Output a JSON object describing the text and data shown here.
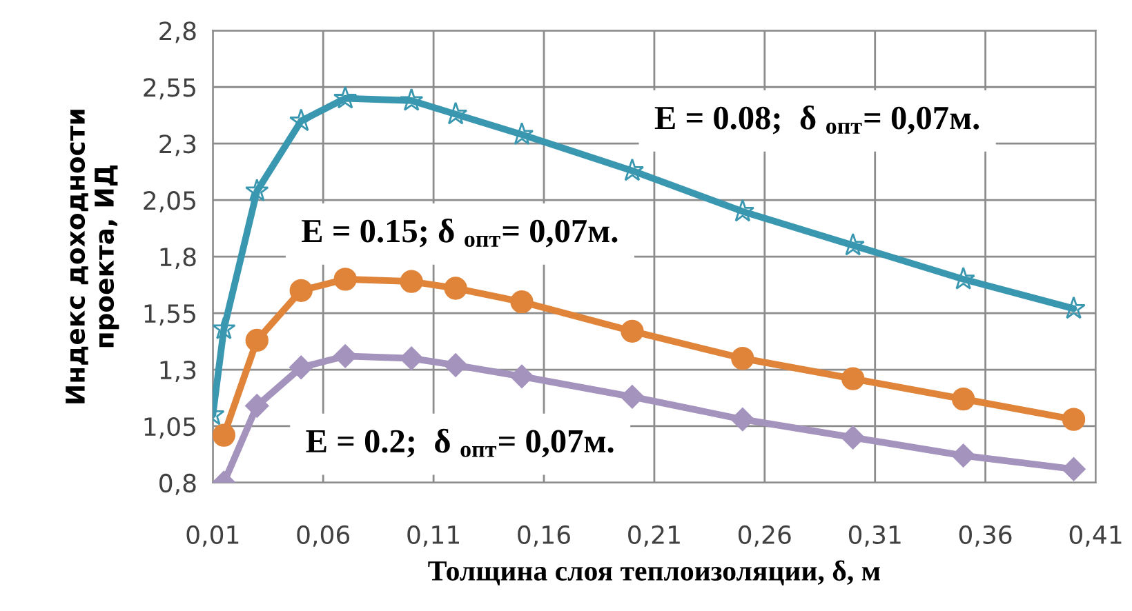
{
  "chart_data": {
    "type": "line",
    "xlabel": "Толщина слоя теплоизоляции, δ, м",
    "ylabel": "Индекс доходности проекта, ИД",
    "xlim": [
      0.01,
      0.41
    ],
    "ylim": [
      0.8,
      2.8
    ],
    "xticks": [
      {
        "value": 0.01,
        "label": "0,01"
      },
      {
        "value": 0.06,
        "label": "0,06"
      },
      {
        "value": 0.11,
        "label": "0,11"
      },
      {
        "value": 0.16,
        "label": "0,16"
      },
      {
        "value": 0.21,
        "label": "0,21"
      },
      {
        "value": 0.26,
        "label": "0,26"
      },
      {
        "value": 0.31,
        "label": "0,31"
      },
      {
        "value": 0.36,
        "label": "0,36"
      },
      {
        "value": 0.41,
        "label": "0,41"
      }
    ],
    "yticks": [
      {
        "value": 0.8,
        "label": "0,8"
      },
      {
        "value": 1.05,
        "label": "1,05"
      },
      {
        "value": 1.3,
        "label": "1,3"
      },
      {
        "value": 1.55,
        "label": "1,55"
      },
      {
        "value": 1.8,
        "label": "1,8"
      },
      {
        "value": 2.05,
        "label": "2,05"
      },
      {
        "value": 2.3,
        "label": "2,3"
      },
      {
        "value": 2.55,
        "label": "2,55"
      },
      {
        "value": 2.8,
        "label": "2,8"
      }
    ],
    "grid": true,
    "line_style": "solid",
    "series": [
      {
        "color": "#3a97b0",
        "marker": "star",
        "x": [
          0.01,
          0.015,
          0.03,
          0.05,
          0.07,
          0.1,
          0.12,
          0.15,
          0.2,
          0.25,
          0.3,
          0.35,
          0.4
        ],
        "values": [
          1.1,
          1.48,
          2.09,
          2.4,
          2.5,
          2.49,
          2.43,
          2.34,
          2.18,
          2.0,
          1.85,
          1.7,
          1.57
        ]
      },
      {
        "color": "#e0843a",
        "marker": "circle",
        "x": [
          0.015,
          0.03,
          0.05,
          0.07,
          0.1,
          0.12,
          0.15,
          0.2,
          0.25,
          0.3,
          0.35,
          0.4
        ],
        "values": [
          1.01,
          1.43,
          1.65,
          1.7,
          1.69,
          1.66,
          1.6,
          1.47,
          1.35,
          1.26,
          1.17,
          1.08
        ]
      },
      {
        "color": "#a493bd",
        "marker": "diamond",
        "x": [
          0.015,
          0.03,
          0.05,
          0.07,
          0.1,
          0.12,
          0.15,
          0.2,
          0.25,
          0.3,
          0.35,
          0.4
        ],
        "values": [
          0.8,
          1.14,
          1.31,
          1.36,
          1.35,
          1.32,
          1.27,
          1.18,
          1.08,
          1.0,
          0.92,
          0.86
        ]
      }
    ],
    "annotations": [
      "E = 0.08;  δ $_{опт}$= 0,07м.",
      "E = 0.15; δ $_{опт}$= 0,07м.",
      "E = 0.2;  δ $_{опт}$= 0,07м."
    ]
  }
}
